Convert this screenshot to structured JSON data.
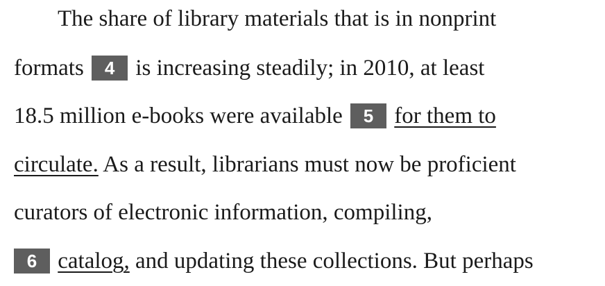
{
  "passage": {
    "line1": "The share of library materials that is in nonprint",
    "line2_pre": "formats",
    "marker4": "4",
    "line2_post": "is increasing steadily; in 2010, at least",
    "line3_pre": "18.5 million e-books were available",
    "marker5": "5",
    "underline5a": "for them to",
    "underline5b": "circulate.",
    "line4_post": "As a result, librarians must now be proficient",
    "line5": "curators of electronic information, compiling,",
    "marker6": "6",
    "underline6": "catalog,",
    "line6_post": "and updating these collections. But perhaps"
  }
}
